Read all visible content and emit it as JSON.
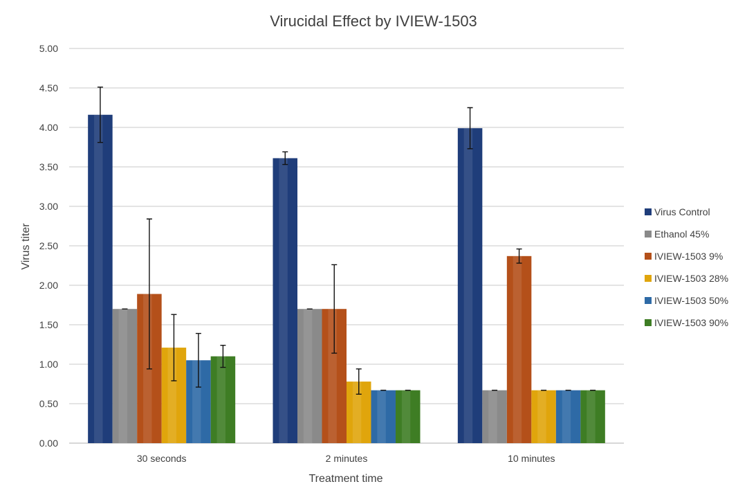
{
  "chart_data": {
    "type": "bar",
    "title": "Virucidal Effect by IVIEW-1503",
    "xlabel": "Treatment time",
    "ylabel": "Virus titer",
    "ylim": [
      0,
      5
    ],
    "ytick_step": 0.5,
    "ytick_labels": [
      "0.00",
      "0.50",
      "1.00",
      "1.50",
      "2.00",
      "2.50",
      "3.00",
      "3.50",
      "4.00",
      "4.50",
      "5.00"
    ],
    "grid": true,
    "legend_position": "right",
    "categories": [
      "30 seconds",
      "2 minutes",
      "10 minutes"
    ],
    "series": [
      {
        "name": "Virus Control",
        "color": "#1f3d7a",
        "values": [
          4.16,
          3.61,
          3.99
        ],
        "errors": [
          0.35,
          0.08,
          0.26
        ]
      },
      {
        "name": "Ethanol 45%",
        "color": "#8a8a8a",
        "values": [
          1.7,
          1.7,
          0.67
        ],
        "errors": [
          0.0,
          0.0,
          0.0
        ]
      },
      {
        "name": "IVIEW-1503 9%",
        "color": "#b4501a",
        "values": [
          1.89,
          1.7,
          2.37
        ],
        "errors": [
          0.95,
          0.56,
          0.09
        ]
      },
      {
        "name": "IVIEW-1503 28%",
        "color": "#e0a50c",
        "values": [
          1.21,
          0.78,
          0.67
        ],
        "errors": [
          0.42,
          0.16,
          0.0
        ]
      },
      {
        "name": "IVIEW-1503 50%",
        "color": "#2e6aa6",
        "values": [
          1.05,
          0.67,
          0.67
        ],
        "errors": [
          0.34,
          0.0,
          0.0
        ]
      },
      {
        "name": "IVIEW-1503 90%",
        "color": "#3e7d24",
        "values": [
          1.1,
          0.67,
          0.67
        ],
        "errors": [
          0.14,
          0.0,
          0.0
        ]
      }
    ]
  }
}
